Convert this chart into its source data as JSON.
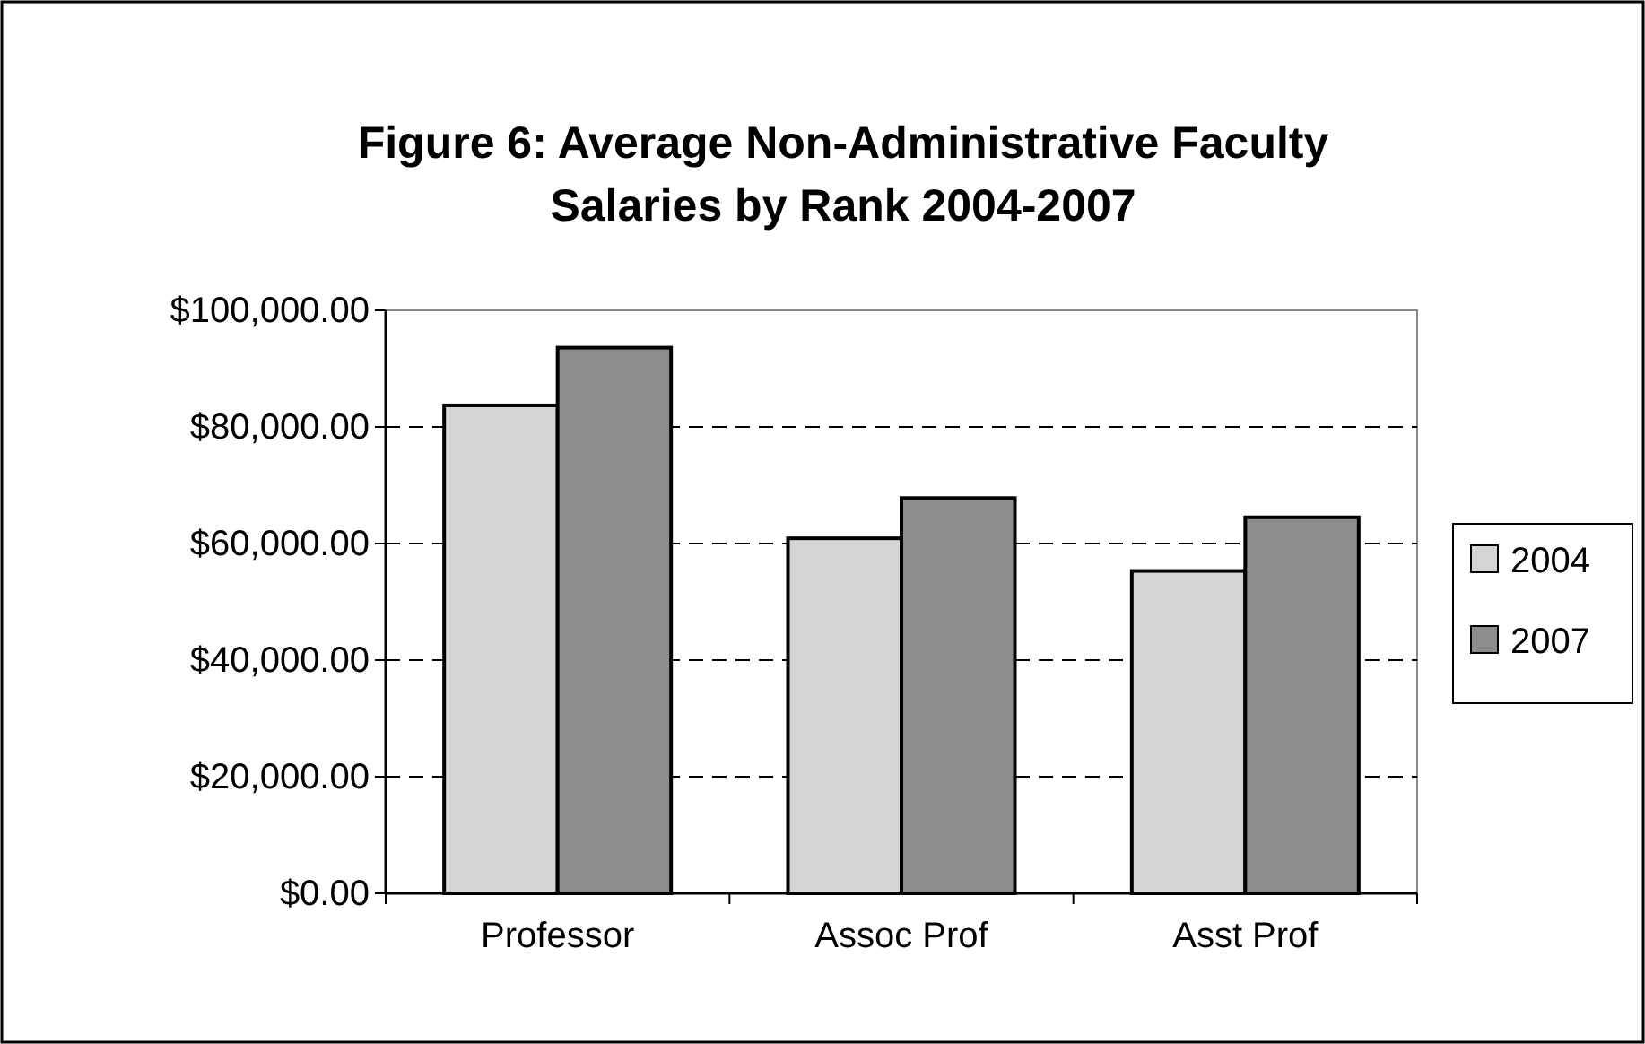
{
  "chart_data": {
    "type": "bar",
    "title": "Figure 6: Average Non-Administrative Faculty Salaries by Rank 2004-2007",
    "categories": [
      "Professor",
      "Assoc Prof",
      "Asst Prof"
    ],
    "series": [
      {
        "name": "2004",
        "color": "#d4d4d4",
        "values": [
          83700,
          60900,
          55300
        ]
      },
      {
        "name": "2007",
        "color": "#8c8c8c",
        "values": [
          93600,
          67800,
          64500
        ]
      }
    ],
    "ylim": [
      0,
      100000
    ],
    "yticks": [
      {
        "value": 0,
        "label": "$0.00"
      },
      {
        "value": 20000,
        "label": "$20,000.00"
      },
      {
        "value": 40000,
        "label": "$40,000.00"
      },
      {
        "value": 60000,
        "label": "$60,000.00"
      },
      {
        "value": 80000,
        "label": "$80,000.00"
      },
      {
        "value": 100000,
        "label": "$100,000.00"
      }
    ],
    "grid": "y",
    "legend": "right"
  }
}
